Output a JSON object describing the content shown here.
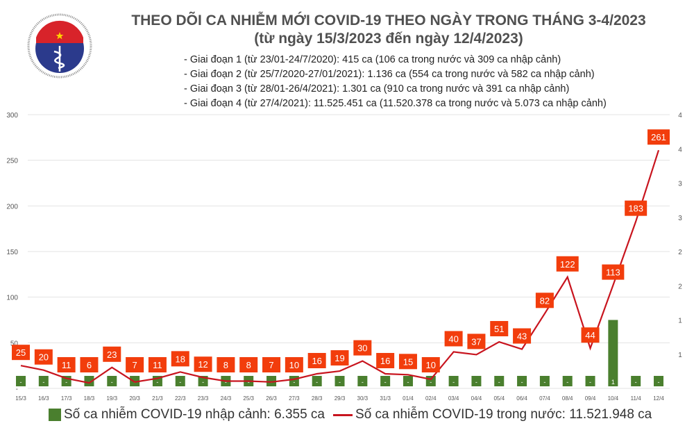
{
  "header": {
    "logo_text_top": "BỘ Y TẾ",
    "logo_text_bottom": "MINISTRY OF HEALTH",
    "title": "THEO DÕI CA NHIỄM MỚI COVID-19 THEO NGÀY TRONG THÁNG 3-4/2023",
    "subtitle": "(từ ngày 15/3/2023 đến ngày 12/4/2023)",
    "notes": [
      "- Giai đoạn 1 (từ 23/01-24/7/2020): 415 ca (106 ca trong nước và 309 ca nhập cảnh)",
      "- Giai đoạn 2 (từ 25/7/2020-27/01/2021): 1.136 ca (554 ca trong nước và 582 ca nhập cảnh)",
      "- Giai đoạn 3 (từ 28/01-26/4/2021): 1.301 ca (910 ca trong nước và 391 ca nhập cảnh)",
      "- Giai đoạn 4 (từ 27/4/2021): 11.525.451 ca (11.520.378 ca trong nước và 5.073 ca nhập cảnh)"
    ]
  },
  "chart_data": {
    "type": "bar+line",
    "categories": [
      "15/3",
      "16/3",
      "17/3",
      "18/3",
      "19/3",
      "20/3",
      "21/3",
      "22/3",
      "23/3",
      "24/3",
      "25/3",
      "26/3",
      "27/3",
      "28/3",
      "29/3",
      "30/3",
      "31/3",
      "01/4",
      "02/4",
      "03/4",
      "04/4",
      "05/4",
      "06/4",
      "07/4",
      "08/4",
      "09/4",
      "10/4",
      "11/4",
      "12/4"
    ],
    "series": [
      {
        "name": "Số ca nhiễm COVID-19 nhập cảnh: 6.355 ca",
        "type": "bar",
        "axis": "right",
        "color": "#4a7f2e",
        "values": [
          0,
          0,
          0,
          0,
          0,
          0,
          0,
          0,
          0,
          0,
          0,
          0,
          0,
          0,
          0,
          0,
          0,
          0,
          0,
          0,
          0,
          0,
          0,
          0,
          0,
          0,
          1,
          0,
          0
        ],
        "labels": [
          "-",
          "-",
          "-",
          "-",
          "-",
          "-",
          "-",
          "-",
          "-",
          "-",
          "-",
          "-",
          "-",
          "-",
          "-",
          "-",
          "-",
          "-",
          "-",
          "-",
          "-",
          "-",
          "-",
          "-",
          "-",
          "-",
          "1",
          "-",
          "-"
        ]
      },
      {
        "name": "Số ca nhiễm COVID-19 trong nước: 11.521.948 ca",
        "type": "line",
        "axis": "left",
        "color": "#c8141e",
        "label_color": "#f23d0c",
        "values": [
          25,
          20,
          11,
          6,
          23,
          7,
          11,
          18,
          12,
          8,
          8,
          7,
          10,
          16,
          19,
          30,
          16,
          15,
          10,
          40,
          37,
          51,
          43,
          82,
          122,
          44,
          113,
          183,
          261
        ]
      }
    ],
    "y_left": {
      "range": [
        0,
        300
      ],
      "ticks": [
        "-",
        "50",
        "100",
        "150",
        "200",
        "250",
        "300"
      ]
    },
    "y_right": {
      "range": [
        0,
        4
      ],
      "ticks": [
        "1",
        "1",
        "2",
        "2",
        "3",
        "3",
        "4",
        "4"
      ]
    },
    "grid": true,
    "legend": "bottom"
  }
}
